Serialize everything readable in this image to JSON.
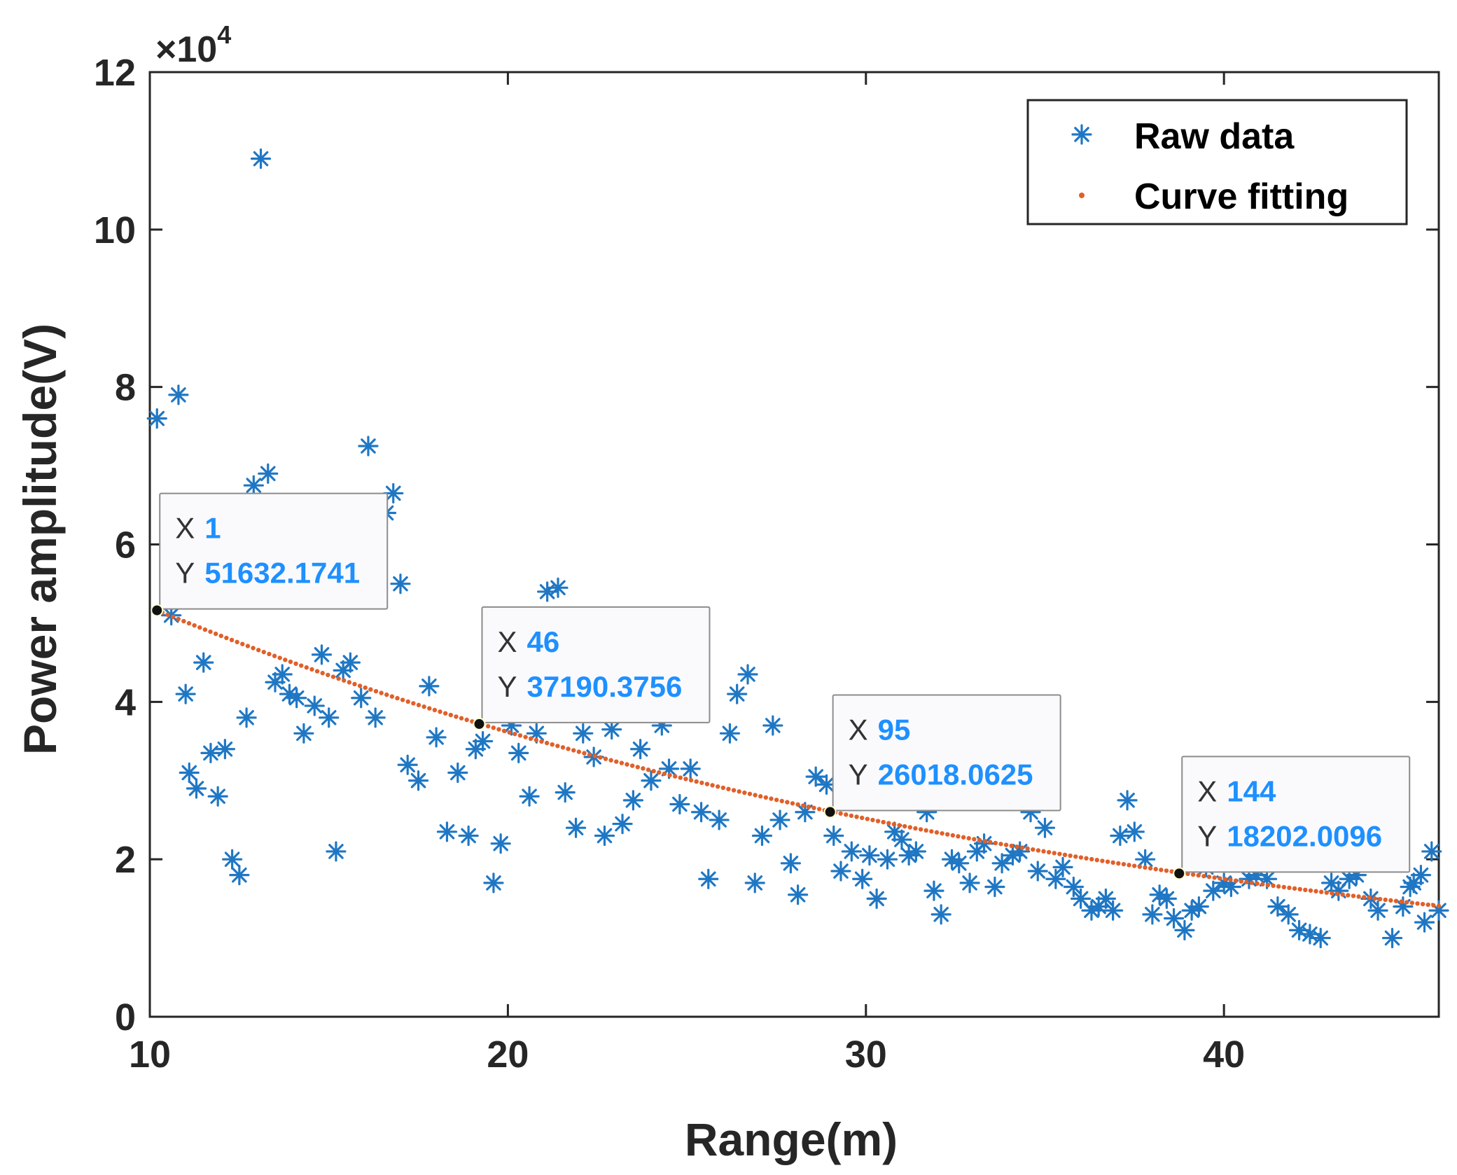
{
  "chart_data": {
    "type": "scatter",
    "xlabel": "Range(m)",
    "ylabel": "Power amplitude(V)",
    "y_exponent_label": "×10",
    "y_exponent_power": "4",
    "xlim": [
      10,
      46
    ],
    "ylim": [
      0,
      120000
    ],
    "xticks": [
      10,
      20,
      30,
      40
    ],
    "xtick_labels": [
      "10",
      "20",
      "30",
      "40"
    ],
    "yticks": [
      0,
      20000,
      40000,
      60000,
      80000,
      100000,
      120000
    ],
    "ytick_labels": [
      "0",
      "2",
      "4",
      "6",
      "8",
      "10",
      "12"
    ],
    "grid": false,
    "legend_position": "top-right",
    "colors": {
      "raw": "#1f77c4",
      "fit": "#e0602a",
      "axis": "#262626"
    },
    "series": [
      {
        "name": "Raw data",
        "marker": "asterisk",
        "x": [
          10.2,
          10.6,
          10.8,
          11.0,
          11.1,
          11.3,
          11.5,
          11.7,
          11.9,
          12.1,
          12.3,
          12.5,
          12.7,
          12.9,
          13.1,
          13.3,
          13.5,
          13.7,
          13.9,
          14.1,
          14.3,
          14.6,
          14.8,
          15.0,
          15.2,
          15.4,
          15.6,
          15.9,
          16.1,
          16.3,
          16.6,
          16.8,
          17.0,
          17.2,
          17.5,
          17.8,
          18.0,
          18.3,
          18.6,
          18.9,
          19.1,
          19.3,
          19.6,
          19.8,
          20.1,
          20.3,
          20.6,
          20.8,
          21.1,
          21.4,
          21.6,
          21.9,
          22.1,
          22.4,
          22.7,
          22.9,
          23.2,
          23.5,
          23.7,
          24.0,
          24.3,
          24.5,
          24.8,
          25.1,
          25.4,
          25.6,
          25.9,
          26.2,
          26.4,
          26.7,
          26.9,
          27.1,
          27.4,
          27.6,
          27.9,
          28.1,
          28.3,
          28.6,
          28.9,
          29.1,
          29.3,
          29.6,
          29.9,
          30.1,
          30.3,
          30.6,
          30.8,
          31.0,
          31.2,
          31.4,
          31.7,
          31.9,
          32.1,
          32.4,
          32.6,
          32.9,
          33.1,
          33.3,
          33.6,
          33.8,
          34.1,
          34.3,
          34.6,
          34.8,
          35.0,
          35.3,
          35.5,
          35.8,
          36.0,
          36.3,
          36.5,
          36.7,
          36.9,
          37.1,
          37.3,
          37.5,
          37.8,
          38.0,
          38.2,
          38.4,
          38.6,
          38.9,
          39.1,
          39.3,
          39.5,
          39.7,
          40.0,
          40.2,
          40.4,
          40.7,
          40.9,
          41.2,
          41.5,
          41.8,
          42.1,
          42.4,
          42.7,
          43.0,
          43.2,
          43.5,
          43.7,
          43.9,
          44.1,
          44.3,
          44.5,
          44.8,
          45.0,
          45.3,
          45.6
        ],
        "y": [
          76000,
          51000,
          79000,
          41000,
          31000,
          29000,
          45000,
          33500,
          28000,
          34000,
          20000,
          18000,
          38000,
          67500,
          109000,
          69000,
          42500,
          43500,
          41000,
          40500,
          36000,
          39500,
          46000,
          38000,
          21000,
          44000,
          45000,
          40500,
          72500,
          38000,
          64000,
          66500,
          55000,
          32000,
          30000,
          42000,
          35500,
          23500,
          31000,
          23000,
          34000,
          35000,
          17000,
          22000,
          37000,
          33500,
          28000,
          36000,
          54000,
          54500,
          28500,
          24000,
          36000,
          33000,
          23000,
          36500,
          24500,
          27500,
          34000,
          30000,
          37000,
          31500,
          27000,
          31500,
          26000,
          17500,
          25000,
          36000,
          41000,
          43500,
          17000,
          23000,
          37000,
          25000,
          19500,
          15500,
          26000,
          30500,
          29500,
          23000,
          18500,
          21000,
          17500,
          20500,
          15000,
          20000,
          23500,
          22500,
          20500,
          21000,
          26000,
          16000,
          13000,
          20000,
          19500,
          17000,
          21000,
          22000,
          16500,
          19500,
          20500,
          21000,
          26000,
          18500,
          24000,
          17500,
          19000,
          16500,
          15000,
          13500,
          14000,
          15000,
          13500,
          23000,
          27500,
          23500,
          20000,
          13000,
          15500,
          15000,
          12500,
          11000,
          13500,
          14000,
          19000,
          16000,
          17000,
          16500,
          21500,
          17500,
          18000,
          17500,
          14000,
          13000,
          11000,
          10500,
          10000,
          17000,
          16000,
          17500,
          18000,
          20000,
          15000,
          13500,
          21000,
          20000,
          14000,
          17000,
          12000
        ],
        "x_extra": [
          44.7,
          45.2,
          45.5,
          45.8,
          46.0
        ],
        "y_extra": [
          10000,
          16500,
          18000,
          21000,
          13500
        ]
      },
      {
        "name": "Curve fitting",
        "marker": "dot",
        "model": "exponential",
        "x_start": 10.2,
        "x_end": 46.0,
        "y_start": 51632.1741,
        "decay_per_m": 0.0363
      }
    ],
    "annotations": [
      {
        "x_label": "X",
        "x_value": "1",
        "y_label": "Y",
        "y_value": "51632.1741",
        "at_x": 10.2,
        "at_y": 51632.1741
      },
      {
        "x_label": "X",
        "x_value": "46",
        "y_label": "Y",
        "y_value": "37190.3756",
        "at_x": 19.2,
        "at_y": 37190.3756
      },
      {
        "x_label": "X",
        "x_value": "95",
        "y_label": "Y",
        "y_value": "26018.0625",
        "at_x": 29.0,
        "at_y": 26018.0625
      },
      {
        "x_label": "X",
        "x_value": "144",
        "y_label": "Y",
        "y_value": "18202.0096",
        "at_x": 38.75,
        "at_y": 18202.0096
      }
    ]
  }
}
